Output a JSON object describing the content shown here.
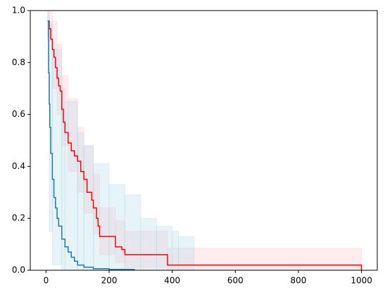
{
  "chart_data": {
    "type": "step",
    "xlim": [
      -50,
      1050
    ],
    "xticks": [
      0,
      200,
      400,
      600,
      800,
      1000
    ],
    "ylim": [
      0,
      1
    ],
    "yticks": [
      {
        "value": 0,
        "label": "0.0"
      },
      0.2,
      0.4,
      0.6,
      0.8,
      {
        "value": 1,
        "label": "1.0"
      }
    ],
    "band_opacity": 0.3,
    "series": [
      {
        "color": "#ff0000",
        "x": [
          5,
          10,
          15,
          20,
          25,
          30,
          35,
          40,
          45,
          50,
          55,
          60,
          70,
          80,
          90,
          100,
          110,
          120,
          130,
          145,
          150,
          160,
          165,
          170,
          220,
          240,
          250,
          385,
          1000
        ],
        "values": [
          0.96,
          0.93,
          0.89,
          0.85,
          0.82,
          0.78,
          0.74,
          0.71,
          0.69,
          0.62,
          0.57,
          0.53,
          0.49,
          0.46,
          0.44,
          0.42,
          0.38,
          0.35,
          0.3,
          0.27,
          0.24,
          0.2,
          0.17,
          0.13,
          0.09,
          0.08,
          0.06,
          0.02,
          0
        ],
        "band": {
          "color": "#ffc0cb",
          "x": [
            5,
            20,
            35,
            50,
            70,
            100,
            120,
            150,
            170,
            220,
            250,
            385,
            1000
          ],
          "lower": [
            0.88,
            0.7,
            0.6,
            0.48,
            0.38,
            0.3,
            0.22,
            0.14,
            0.06,
            0.03,
            0.01,
            0,
            0
          ],
          "upper": [
            1,
            0.96,
            0.87,
            0.75,
            0.66,
            0.55,
            0.48,
            0.37,
            0.24,
            0.19,
            0.15,
            0.085,
            0.085
          ]
        }
      },
      {
        "color": "#1f77b4",
        "x": [
          5,
          8,
          10,
          12,
          15,
          20,
          25,
          30,
          35,
          40,
          50,
          60,
          70,
          80,
          90,
          100,
          120,
          150,
          200,
          280
        ],
        "values": [
          0.96,
          0.76,
          0.64,
          0.55,
          0.45,
          0.35,
          0.28,
          0.24,
          0.2,
          0.17,
          0.12,
          0.09,
          0.07,
          0.05,
          0.035,
          0.02,
          0.012,
          0.006,
          0.003,
          0
        ],
        "band": {
          "color": "#add8e6",
          "x": [
            5,
            10,
            20,
            50,
            60,
            100,
            120,
            150,
            200,
            250,
            300,
            350,
            400,
            420,
            470
          ],
          "lower": [
            0.9,
            0.15,
            0.02,
            0,
            0,
            0,
            0,
            0,
            0,
            0,
            0,
            0,
            0,
            0,
            0
          ],
          "upper": [
            1,
            0.95,
            0.85,
            0.7,
            0.65,
            0.53,
            0.48,
            0.41,
            0.33,
            0.29,
            0.2,
            0.17,
            0.15,
            0.13,
            0.11
          ]
        }
      }
    ]
  }
}
